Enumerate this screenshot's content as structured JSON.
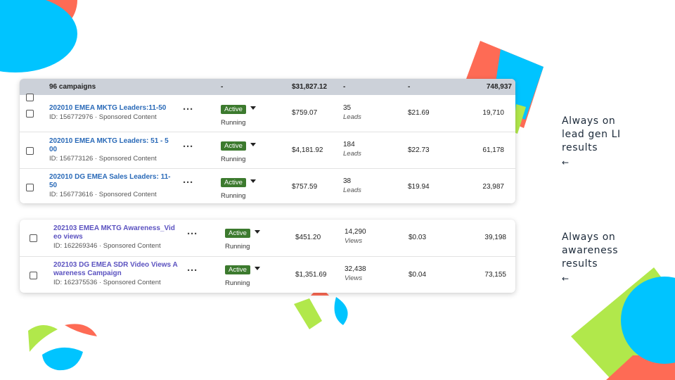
{
  "colors": {
    "coral": "#fe6b55",
    "cyan": "#00c4ff",
    "lime": "#b1e84b",
    "header_bg": "#ccd1d9",
    "active_green": "#3c7a2e"
  },
  "table1": {
    "header": {
      "count": "96 campaigns",
      "col1": "-",
      "spend": "$31,827.12",
      "col3": "-",
      "col4": "-",
      "impressions": "748,937"
    },
    "rows": [
      {
        "name": "202010 EMEA MKTG Leaders:11-50",
        "meta": "ID: 156772976 · Sponsored Content",
        "badge": "Active",
        "status": "Running",
        "spend": "$759.07",
        "results": "35",
        "results_unit": "Leads",
        "cost": "$21.69",
        "impressions": "19,710"
      },
      {
        "name": "202010 EMEA MKTG Leaders: 51 - 5 00",
        "meta": "ID: 156773126 · Sponsored Content",
        "badge": "Active",
        "status": "Running",
        "spend": "$4,181.92",
        "results": "184",
        "results_unit": "Leads",
        "cost": "$22.73",
        "impressions": "61,178"
      },
      {
        "name": "202010 DG EMEA Sales Leaders: 11-50",
        "meta": "ID: 156773616 · Sponsored Content",
        "badge": "Active",
        "status": "Running",
        "spend": "$757.59",
        "results": "38",
        "results_unit": "Leads",
        "cost": "$19.94",
        "impressions": "23,987"
      }
    ]
  },
  "table2": {
    "rows": [
      {
        "name": "202103 EMEA MKTG Awareness_Vid eo views",
        "meta": "ID: 162269346 · Sponsored Content",
        "badge": "Active",
        "status": "Running",
        "spend": "$451.20",
        "results": "14,290",
        "results_unit": "Views",
        "cost": "$0.03",
        "impressions": "39,198"
      },
      {
        "name": "202103 DG EMEA SDR Video Views A wareness Campaign",
        "meta": "ID: 162375536 · Sponsored Content",
        "badge": "Active",
        "status": "Running",
        "spend": "$1,351.69",
        "results": "32,438",
        "results_unit": "Views",
        "cost": "$0.04",
        "impressions": "73,155"
      }
    ]
  },
  "icons": {
    "more": "more-options-icon",
    "caret": "caret-down-icon",
    "arrow": "arrow-left-icon"
  },
  "annotations": {
    "lead": {
      "text": "Always on lead gen LI results",
      "arrow": "←"
    },
    "awareness": {
      "text": "Always on awareness results",
      "arrow": "←"
    }
  }
}
